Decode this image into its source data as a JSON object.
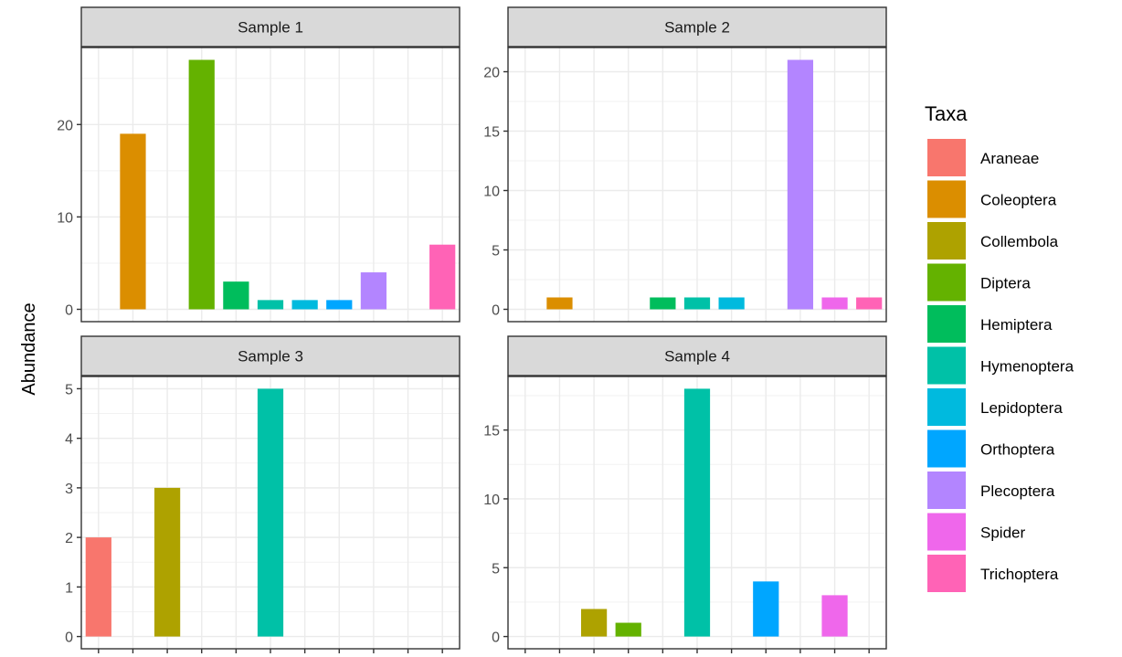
{
  "chart_data": {
    "type": "bar",
    "ylabel": "Abundance",
    "xlabel": "",
    "categories": [
      "Araneae",
      "Coleoptera",
      "Collembola",
      "Diptera",
      "Hemiptera",
      "Hymenoptera",
      "Lepidoptera",
      "Orthoptera",
      "Plecoptera",
      "Spider",
      "Trichoptera"
    ],
    "colors": [
      "#F8766D",
      "#DB8E00",
      "#AEA200",
      "#64B200",
      "#00BD5C",
      "#00C1A7",
      "#00BADE",
      "#00A6FF",
      "#B385FF",
      "#EF67EB",
      "#FF63B6"
    ],
    "legend": {
      "title": "Taxa",
      "position": "right"
    },
    "grid": true,
    "panels": [
      {
        "title": "Sample 1",
        "ylim": [
          0,
          27
        ],
        "yticks": [
          0,
          10,
          20
        ],
        "values": [
          0,
          19,
          0,
          27,
          3,
          1,
          1,
          1,
          4,
          0,
          7
        ]
      },
      {
        "title": "Sample 2",
        "ylim": [
          0,
          21
        ],
        "yticks": [
          0,
          5,
          10,
          15,
          20
        ],
        "values": [
          0,
          1,
          0,
          0,
          1,
          1,
          1,
          0,
          21,
          1,
          1
        ]
      },
      {
        "title": "Sample 3",
        "ylim": [
          0,
          5
        ],
        "yticks": [
          0,
          1,
          2,
          3,
          4,
          5
        ],
        "values": [
          2,
          0,
          3,
          0,
          0,
          5,
          0,
          0,
          0,
          0,
          0
        ]
      },
      {
        "title": "Sample 4",
        "ylim": [
          0,
          18
        ],
        "yticks": [
          0,
          5,
          10,
          15
        ],
        "values": [
          0,
          0,
          2,
          1,
          0,
          18,
          0,
          4,
          0,
          3,
          0
        ]
      }
    ]
  }
}
